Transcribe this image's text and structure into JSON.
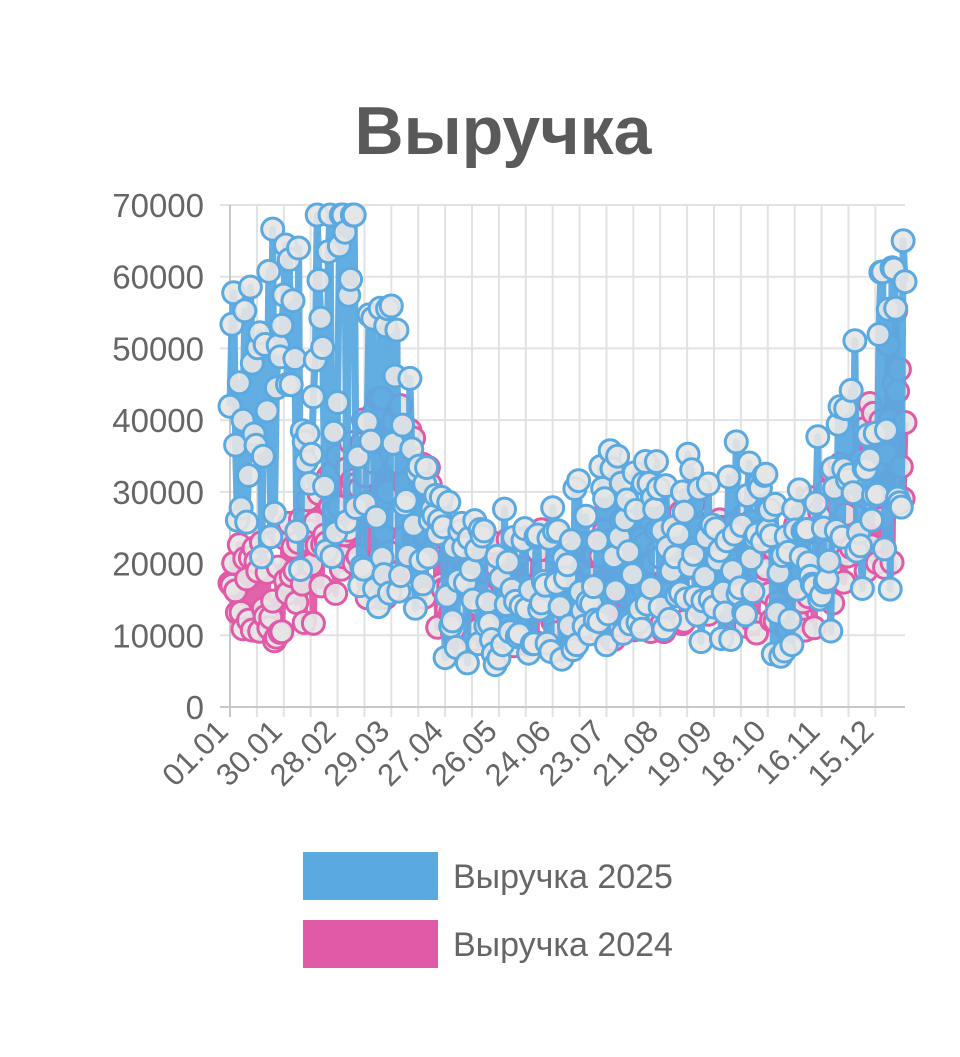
{
  "chart_data": {
    "type": "line",
    "title": "Выручка",
    "xlabel": "",
    "ylabel": "",
    "ylim": [
      0,
      70000
    ],
    "y_ticks": [
      "0",
      "10000",
      "20000",
      "30000",
      "40000",
      "50000",
      "60000",
      "70000"
    ],
    "x_tick_labels": [
      "01.01",
      "30.01",
      "28.02",
      "29.03",
      "27.04",
      "26.05",
      "24.06",
      "23.07",
      "21.08",
      "19.09",
      "18.10",
      "16.11",
      "15.12"
    ],
    "grid": true,
    "legend_position": "bottom",
    "point_fill": "#e5e5e5",
    "series": [
      {
        "name": "Выручка 2025",
        "color": "#5aa9e0",
        "monthly_values": [
          40000,
          42000,
          48000,
          32000,
          16000,
          17000,
          18000,
          24000,
          22000,
          24000,
          17000,
          32000,
          45000
        ]
      },
      {
        "name": "Выручка 2024",
        "color": "#e05aa8",
        "monthly_values": [
          15000,
          17000,
          27000,
          30000,
          16000,
          16000,
          17000,
          19000,
          19000,
          20000,
          18000,
          27000,
          40000
        ]
      }
    ]
  }
}
